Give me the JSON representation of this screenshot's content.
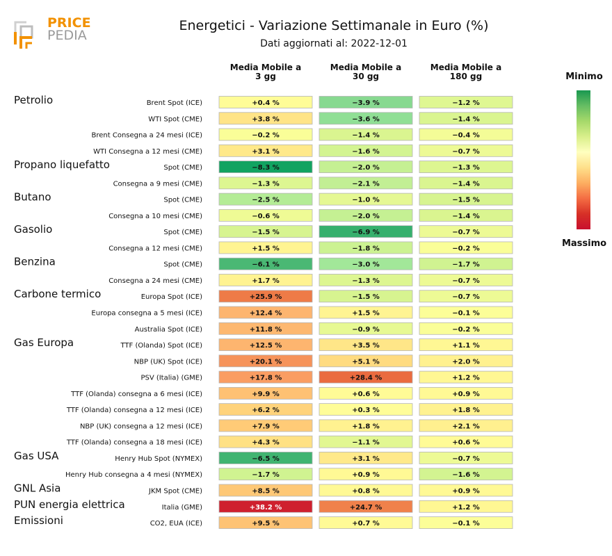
{
  "title": "Energetici - Variazione Settimanale in Euro (%)",
  "subtitle": "Dati aggiornati al: 2022-12-01",
  "logo": {
    "line1": "PRICE",
    "line2": "PEDIA"
  },
  "colorbar": {
    "top_label": "Minimo",
    "bottom_label": "Massimo"
  },
  "chart_data": {
    "type": "heatmap",
    "columns": [
      "Media Mobile a\n3 gg",
      "Media Mobile a\n30 gg",
      "Media Mobile a\n180 gg"
    ],
    "rows": [
      {
        "group": "Petrolio",
        "label": "Brent Spot (ICE)",
        "values": [
          0.4,
          -3.9,
          -1.2
        ]
      },
      {
        "group": "",
        "label": "WTI Spot (CME)",
        "values": [
          3.8,
          -3.6,
          -1.4
        ]
      },
      {
        "group": "",
        "label": "Brent Consegna a 24 mesi (ICE)",
        "values": [
          -0.2,
          -1.4,
          -0.4
        ]
      },
      {
        "group": "",
        "label": "WTI Consegna a 12 mesi (CME)",
        "values": [
          3.1,
          -1.6,
          -0.7
        ]
      },
      {
        "group": "Propano liquefatto",
        "label": "Spot (CME)",
        "values": [
          -8.3,
          -2.0,
          -1.3
        ]
      },
      {
        "group": "",
        "label": "Consegna a 9 mesi (CME)",
        "values": [
          -1.3,
          -2.1,
          -1.4
        ]
      },
      {
        "group": "Butano",
        "label": "Spot (CME)",
        "values": [
          -2.5,
          -1.0,
          -1.5
        ]
      },
      {
        "group": "",
        "label": "Consegna a 10 mesi (CME)",
        "values": [
          -0.6,
          -2.0,
          -1.4
        ]
      },
      {
        "group": "Gasolio",
        "label": "Spot (CME)",
        "values": [
          -1.5,
          -6.9,
          -0.7
        ]
      },
      {
        "group": "",
        "label": "Consegna a 12 mesi (CME)",
        "values": [
          1.5,
          -1.8,
          -0.2
        ]
      },
      {
        "group": "Benzina",
        "label": "Spot (CME)",
        "values": [
          -6.1,
          -3.0,
          -1.7
        ]
      },
      {
        "group": "",
        "label": "Consegna a 24 mesi (CME)",
        "values": [
          1.7,
          -1.3,
          -0.7
        ]
      },
      {
        "group": "Carbone termico",
        "label": "Europa Spot (ICE)",
        "values": [
          25.9,
          -1.5,
          -0.7
        ]
      },
      {
        "group": "",
        "label": "Europa consegna a 5 mesi (ICE)",
        "values": [
          12.4,
          1.5,
          -0.1
        ]
      },
      {
        "group": "",
        "label": "Australia Spot (ICE)",
        "values": [
          11.8,
          -0.9,
          -0.2
        ]
      },
      {
        "group": "Gas Europa",
        "label": "TTF (Olanda) Spot (ICE)",
        "values": [
          12.5,
          3.5,
          1.1
        ]
      },
      {
        "group": "",
        "label": "NBP (UK) Spot (ICE)",
        "values": [
          20.1,
          5.1,
          2.0
        ]
      },
      {
        "group": "",
        "label": "PSV (Italia) (GME)",
        "values": [
          17.8,
          28.4,
          1.2
        ]
      },
      {
        "group": "",
        "label": "TTF (Olanda) consegna a 6 mesi (ICE)",
        "values": [
          9.9,
          0.6,
          0.9
        ]
      },
      {
        "group": "",
        "label": "TTF (Olanda) consegna a 12 mesi (ICE)",
        "values": [
          6.2,
          0.3,
          1.8
        ]
      },
      {
        "group": "",
        "label": "NBP (UK) consegna a 12 mesi (ICE)",
        "values": [
          7.9,
          1.8,
          2.1
        ]
      },
      {
        "group": "",
        "label": "TTF (Olanda) consegna a 18 mesi (ICE)",
        "values": [
          4.3,
          -1.1,
          0.6
        ]
      },
      {
        "group": "Gas USA",
        "label": "Henry Hub Spot (NYMEX)",
        "values": [
          -6.5,
          3.1,
          -0.7
        ]
      },
      {
        "group": "",
        "label": "Henry Hub consegna a 4 mesi (NYMEX)",
        "values": [
          -1.7,
          0.9,
          -1.6
        ]
      },
      {
        "group": "GNL Asia",
        "label": "JKM Spot (CME)",
        "values": [
          8.5,
          0.8,
          0.9
        ]
      },
      {
        "group": "PUN energia elettrica",
        "label": "Italia (GME)",
        "values": [
          38.2,
          24.7,
          1.2
        ]
      },
      {
        "group": "Emissioni",
        "label": "CO2, EUA (ICE)",
        "values": [
          9.5,
          0.7,
          -0.1
        ]
      }
    ],
    "colorscale": {
      "min_color": "#1a9850",
      "mid_color": "#ffffbf",
      "max_color": "#c8102e"
    }
  }
}
